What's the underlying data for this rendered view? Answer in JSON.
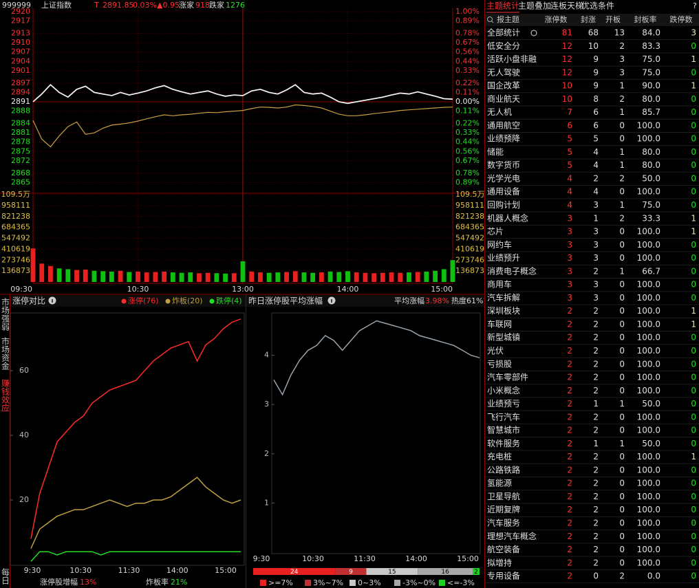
{
  "header": {
    "code": "999999",
    "name": "上证指数",
    "flag": "T",
    "price": "2891.85",
    "pct": "0.03%",
    "change": "▲0.95",
    "up_label": "涨家",
    "up": "918",
    "down_label": "跌家",
    "down": "1276"
  },
  "intraday": {
    "ylim": [
      2862,
      2920
    ],
    "price_ticks": [
      2920,
      2917,
      2913,
      2910,
      2907,
      2904,
      2901,
      2897,
      2894,
      2891,
      2888,
      2884,
      2881,
      2878,
      2875,
      2872,
      2868,
      2865
    ],
    "pct_ticks": [
      "1.00%",
      "0.89%",
      "0.78%",
      "0.67%",
      "0.56%",
      "0.44%",
      "0.33%",
      "0.22%",
      "0.11%",
      "0.00%",
      "0.11%",
      "0.22%",
      "0.33%",
      "0.44%",
      "0.56%",
      "0.67%",
      "0.78%",
      "0.89%"
    ],
    "volume_ylim": [
      0,
      1095000
    ],
    "volume_ticks": [
      {
        "value": 1095000,
        "label": "109.5万"
      },
      958111,
      821238,
      684365,
      547492,
      410619,
      273746,
      136873
    ],
    "time_labels": [
      "09:30",
      "10:30",
      "13:00",
      "14:00",
      "15:00"
    ],
    "index_line": [
      2891.0,
      2893.5,
      2896.5,
      2894.0,
      2892.5,
      2895.0,
      2896.0,
      2894.0,
      2893.5,
      2893.0,
      2894.0,
      2893.2,
      2893.8,
      2894.5,
      2895.5,
      2896.2,
      2895.0,
      2894.2,
      2893.5,
      2894.0,
      2894.5,
      2893.5,
      2892.8,
      2893.2,
      2893.0,
      2894.5,
      2895.0,
      2894.0,
      2893.5,
      2894.8,
      2896.5,
      2894.0,
      2893.5,
      2893.8,
      2892.5,
      2891.0,
      2890.5,
      2891.0,
      2891.5,
      2892.0,
      2892.5,
      2893.2,
      2893.8,
      2893.5,
      2894.2,
      2893.5,
      2892.8,
      2892.0,
      2891.85
    ],
    "avg_line": [
      2885,
      2879,
      2876.5,
      2880,
      2883,
      2884.5,
      2880.5,
      2881,
      2882.5,
      2883.5,
      2883.8,
      2884.2,
      2884.8,
      2885.5,
      2886.2,
      2886.8,
      2886.5,
      2886.8,
      2887,
      2887.3,
      2887.6,
      2887.5,
      2887.8,
      2888,
      2888.2,
      2888.8,
      2889.3,
      2889.2,
      2889,
      2889.3,
      2890,
      2889.8,
      2889.5,
      2889,
      2888,
      2887,
      2886.5,
      2886.5,
      2886.8,
      2887.2,
      2887.5,
      2887.8,
      2888.2,
      2888.4,
      2888.6,
      2888.8,
      2889,
      2889.2,
      2889.3
    ],
    "index_color": "#f0f0f0",
    "avg_color": "#c8a040",
    "volumes": [
      420000,
      230000,
      200000,
      170000,
      160000,
      150000,
      155000,
      140000,
      135000,
      130000,
      140000,
      125000,
      130000,
      120000,
      125000,
      130000,
      120000,
      115000,
      120000,
      110000,
      115000,
      110000,
      105000,
      110000,
      260000,
      130000,
      120000,
      115000,
      120000,
      125000,
      135000,
      120000,
      115000,
      120000,
      130000,
      125000,
      135000,
      120000,
      115000,
      110000,
      115000,
      120000,
      115000,
      120000,
      125000,
      130000,
      140000,
      160000,
      273746
    ]
  },
  "side_tabs": [
    "市场强弱",
    "市场资金",
    "赚钱效应",
    "每日"
  ],
  "limit_chart": {
    "title": "涨停对比",
    "ylim": [
      0,
      80
    ],
    "yticks": [
      20,
      40,
      60
    ],
    "x_labels": [
      "9:30",
      "10:30",
      "11:30",
      "14:00",
      "15:00"
    ],
    "series": [
      {
        "name": "涨停(76)",
        "color": "#ff2a2a",
        "values": [
          8,
          22,
          30,
          38,
          41,
          44,
          46,
          50,
          52,
          54,
          55,
          56,
          57,
          60,
          63,
          65,
          67,
          68,
          69,
          63,
          68,
          70,
          73,
          75,
          76
        ]
      },
      {
        "name": "炸板(20)",
        "color": "#c0a040",
        "values": [
          5,
          11,
          13,
          15,
          16,
          17,
          17,
          18,
          19,
          20,
          19,
          18,
          19,
          19,
          20,
          20,
          21,
          23,
          25,
          27,
          24,
          22,
          20,
          19,
          20
        ]
      },
      {
        "name": "跌停(4)",
        "color": "#20e020",
        "values": [
          1,
          4,
          4,
          3,
          4,
          4,
          4,
          4,
          3,
          4,
          4,
          4,
          4,
          4,
          4,
          4,
          4,
          4,
          4,
          4,
          4,
          4,
          4,
          4,
          4
        ]
      }
    ],
    "footer": [
      {
        "label": "涨停股增幅",
        "value": "13%",
        "color": "#ff3030"
      },
      {
        "label": "炸板率",
        "value": "21%",
        "color": "#30e030"
      }
    ]
  },
  "rise_chart": {
    "title": "昨日涨停股平均涨幅",
    "avg_label": "平均涨幅",
    "avg_value": "3.98%",
    "heat": "热度61%",
    "ylim": [
      0,
      5
    ],
    "yticks": [
      1,
      2,
      3,
      4
    ],
    "x_labels": [
      "9:30",
      "10:30",
      "11:30",
      "14:00",
      "15:00"
    ],
    "color": "#9aa4ae",
    "values": [
      3.5,
      3.2,
      3.6,
      3.9,
      4.1,
      4.2,
      4.4,
      4.3,
      4.1,
      4.3,
      4.5,
      4.6,
      4.7,
      4.65,
      4.6,
      4.55,
      4.5,
      4.4,
      4.35,
      4.3,
      4.25,
      4.2,
      4.1,
      4.0,
      3.95
    ],
    "distribution": [
      {
        "label": ">=7%",
        "count": 24,
        "color": "#e82020"
      },
      {
        "label": "3%~7%",
        "count": 9,
        "color": "#c03030"
      },
      {
        "label": "0~3%",
        "count": 15,
        "color": "#c8c8c8"
      },
      {
        "label": "-3%~0%",
        "count": 16,
        "color": "#a8a8a8"
      },
      {
        "label": "<=-3%",
        "count": 2,
        "color": "#20d020"
      }
    ]
  },
  "table": {
    "tabs": [
      "主题统计",
      "主题叠加",
      "连板天梯",
      "优选条件"
    ],
    "help": "?",
    "columns": [
      "报主题",
      "涨停数",
      "封涨",
      "开板",
      "封板率",
      "跌停数"
    ],
    "rows": [
      [
        "全部统计",
        "81",
        "68",
        "13",
        "84.0",
        "3"
      ],
      [
        "低安全分",
        "12",
        "10",
        "2",
        "83.3",
        "0"
      ],
      [
        "活跃小盘非融",
        "12",
        "9",
        "3",
        "75.0",
        "1"
      ],
      [
        "无人驾驶",
        "12",
        "9",
        "3",
        "75.0",
        "0"
      ],
      [
        "国企改革",
        "10",
        "9",
        "1",
        "90.0",
        "1"
      ],
      [
        "商业航天",
        "10",
        "8",
        "2",
        "80.0",
        "0"
      ],
      [
        "无人机",
        "7",
        "6",
        "1",
        "85.7",
        "0"
      ],
      [
        "通用航空",
        "6",
        "6",
        "0",
        "100.0",
        "0"
      ],
      [
        "业绩预降",
        "5",
        "5",
        "0",
        "100.0",
        "0"
      ],
      [
        "储能",
        "5",
        "4",
        "1",
        "80.0",
        "0"
      ],
      [
        "数字货币",
        "5",
        "4",
        "1",
        "80.0",
        "0"
      ],
      [
        "光学光电",
        "4",
        "2",
        "2",
        "50.0",
        "0"
      ],
      [
        "通用设备",
        "4",
        "4",
        "0",
        "100.0",
        "0"
      ],
      [
        "回购计划",
        "4",
        "3",
        "1",
        "75.0",
        "0"
      ],
      [
        "机器人概念",
        "3",
        "1",
        "2",
        "33.3",
        "1"
      ],
      [
        "芯片",
        "3",
        "3",
        "0",
        "100.0",
        "1"
      ],
      [
        "网约车",
        "3",
        "3",
        "0",
        "100.0",
        "0"
      ],
      [
        "业绩预升",
        "3",
        "3",
        "0",
        "100.0",
        "0"
      ],
      [
        "消费电子概念",
        "3",
        "2",
        "1",
        "66.7",
        "0"
      ],
      [
        "商用车",
        "3",
        "3",
        "0",
        "100.0",
        "0"
      ],
      [
        "汽车拆解",
        "3",
        "3",
        "0",
        "100.0",
        "0"
      ],
      [
        "深圳板块",
        "2",
        "2",
        "0",
        "100.0",
        "1"
      ],
      [
        "车联网",
        "2",
        "2",
        "0",
        "100.0",
        "1"
      ],
      [
        "新型城镇",
        "2",
        "2",
        "0",
        "100.0",
        "0"
      ],
      [
        "光伏",
        "2",
        "2",
        "0",
        "100.0",
        "0"
      ],
      [
        "亏损股",
        "2",
        "2",
        "0",
        "100.0",
        "0"
      ],
      [
        "汽车零部件",
        "2",
        "2",
        "0",
        "100.0",
        "0"
      ],
      [
        "小米概念",
        "2",
        "2",
        "0",
        "100.0",
        "0"
      ],
      [
        "业绩预亏",
        "2",
        "1",
        "1",
        "50.0",
        "0"
      ],
      [
        "飞行汽车",
        "2",
        "2",
        "0",
        "100.0",
        "0"
      ],
      [
        "智慧城市",
        "2",
        "2",
        "0",
        "100.0",
        "0"
      ],
      [
        "软件服务",
        "2",
        "1",
        "1",
        "50.0",
        "0"
      ],
      [
        "充电桩",
        "2",
        "2",
        "0",
        "100.0",
        "1"
      ],
      [
        "公路铁路",
        "2",
        "2",
        "0",
        "100.0",
        "0"
      ],
      [
        "氢能源",
        "2",
        "2",
        "0",
        "100.0",
        "0"
      ],
      [
        "卫星导航",
        "2",
        "2",
        "0",
        "100.0",
        "0"
      ],
      [
        "近期复牌",
        "2",
        "2",
        "0",
        "100.0",
        "0"
      ],
      [
        "汽车服务",
        "2",
        "2",
        "0",
        "100.0",
        "0"
      ],
      [
        "理想汽车概念",
        "2",
        "2",
        "0",
        "100.0",
        "0"
      ],
      [
        "航空装备",
        "2",
        "2",
        "0",
        "100.0",
        "0"
      ],
      [
        "拟增持",
        "2",
        "2",
        "0",
        "100.0",
        "0"
      ],
      [
        "专用设备",
        "2",
        "0",
        "2",
        "0.0",
        "0"
      ]
    ]
  }
}
